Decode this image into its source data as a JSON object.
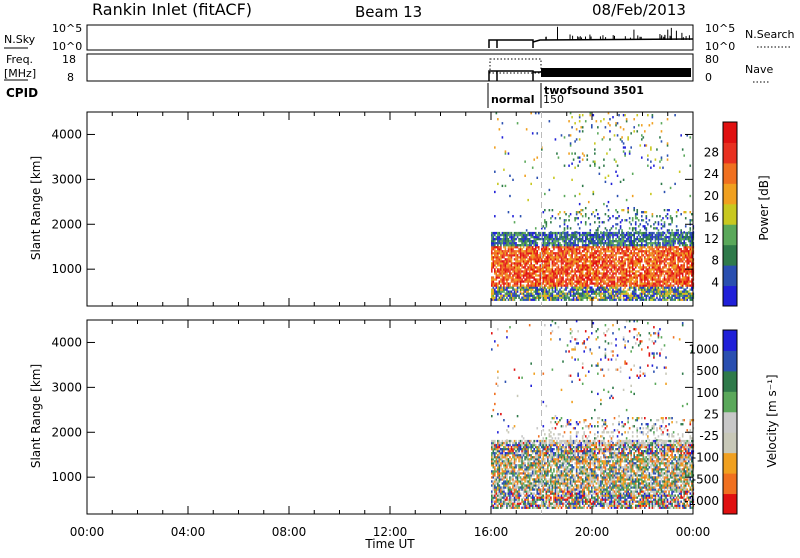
{
  "header": {
    "station": "Rankin Inlet (fitACF)",
    "beam": "Beam 13",
    "date": "08/Feb/2013"
  },
  "top_panels": {
    "nsky_label": "N.Sky",
    "nsearch_label": "N.Search",
    "freq_label": "Freq.",
    "freq_unit": "[MHz]",
    "nave_label": "Nave",
    "cpid_label": "CPID",
    "noise_ticks": [
      "10^5",
      "10^0"
    ],
    "freq_ticks": [
      "18",
      "8"
    ],
    "nave_ticks": [
      "80",
      "0"
    ],
    "cpid_modes": [
      {
        "name": "normal",
        "start": 16.0
      },
      {
        "name": "150",
        "start": 18.0
      },
      {
        "name": "twofsound 3501",
        "start": 18.0
      }
    ]
  },
  "colors": {
    "power": [
      "#2020d8",
      "#2a4fb0",
      "#2f7a4a",
      "#5aa85a",
      "#c8c820",
      "#f0a020",
      "#f07020",
      "#e83020",
      "#e01010"
    ],
    "velocity": [
      "#e01010",
      "#f07020",
      "#f0a020",
      "#c8c8b8",
      "#c8c8c8",
      "#5aa85a",
      "#2f7a4a",
      "#2a4fb0",
      "#2020d8"
    ]
  },
  "chart_data": [
    {
      "type": "heatmap",
      "title": "Power",
      "xlabel": "",
      "ylabel": "Slant Range [km]",
      "xlim": [
        0,
        24
      ],
      "ylim": [
        180,
        4500
      ],
      "yticks": [
        1000,
        2000,
        3000,
        4000
      ],
      "colorbar_label": "Power [dB]",
      "colorbar_ticks": [
        "4",
        "8",
        "12",
        "16",
        "20",
        "24",
        "28"
      ],
      "data_start": 16.0
    },
    {
      "type": "heatmap",
      "title": "Velocity",
      "xlabel": "Time UT",
      "ylabel": "Slant Range [km]",
      "xlim": [
        0,
        24
      ],
      "ylim": [
        180,
        4500
      ],
      "yticks": [
        1000,
        2000,
        3000,
        4000
      ],
      "xtick_labels": [
        "00:00",
        "04:00",
        "08:00",
        "12:00",
        "16:00",
        "20:00",
        "00:00"
      ],
      "colorbar_label": "Velocity [m s⁻¹]",
      "colorbar_ticks": [
        "1000",
        "500",
        "100",
        "25",
        "-25",
        "-100",
        "-500",
        "-1000"
      ],
      "data_start": 16.0
    }
  ]
}
